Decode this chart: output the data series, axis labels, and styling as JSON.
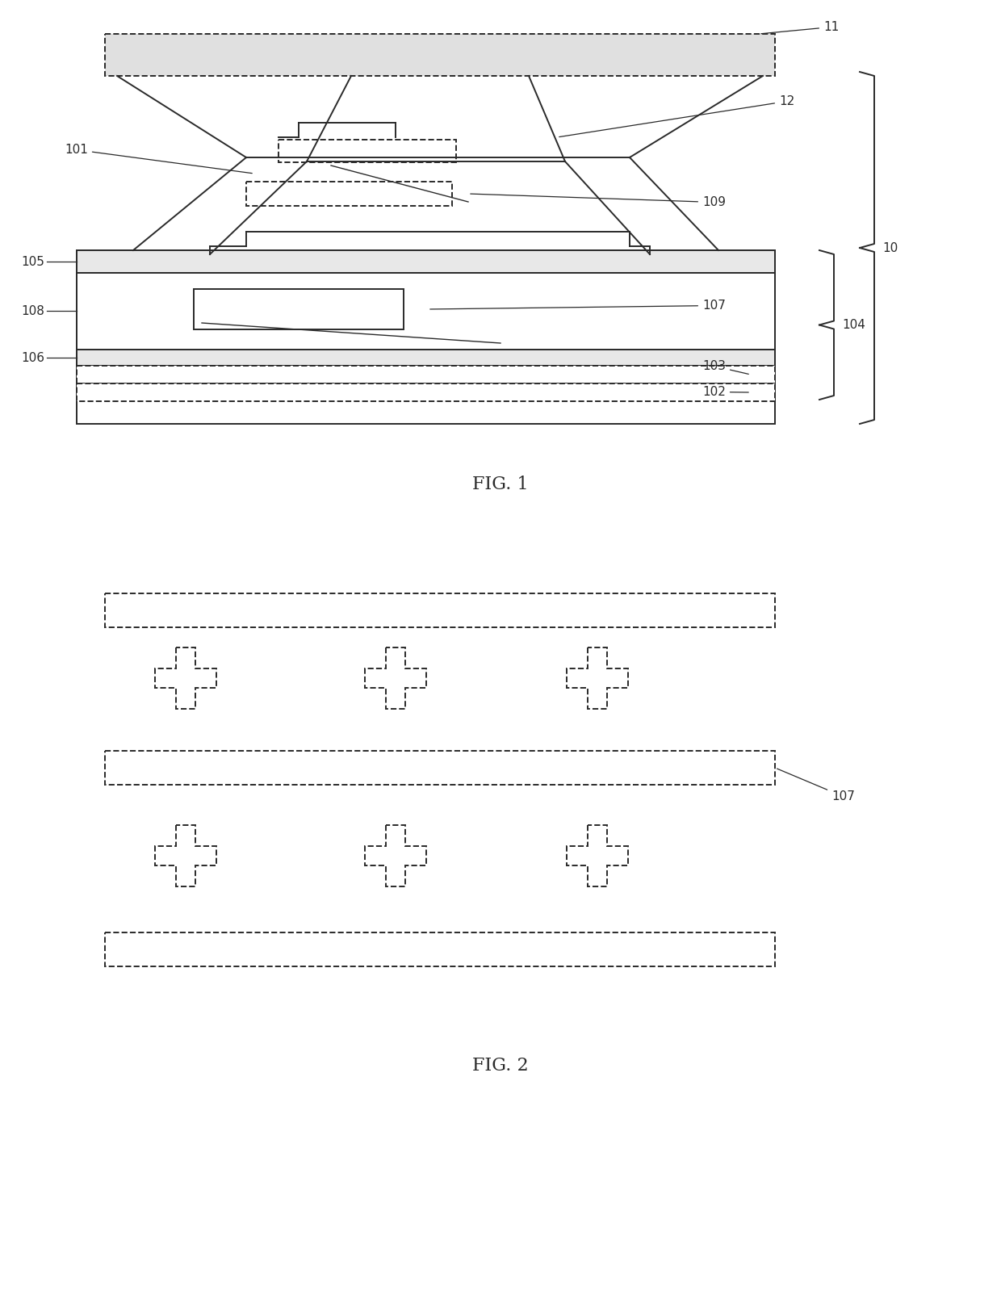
{
  "bg_color": "#ffffff",
  "fig_width": 12.4,
  "fig_height": 16.09,
  "line_color": "#2a2a2a",
  "fig1_label": "FIG. 1",
  "fig2_label": "FIG. 2",
  "ann_fontsize": 11,
  "caption_fontsize": 16
}
